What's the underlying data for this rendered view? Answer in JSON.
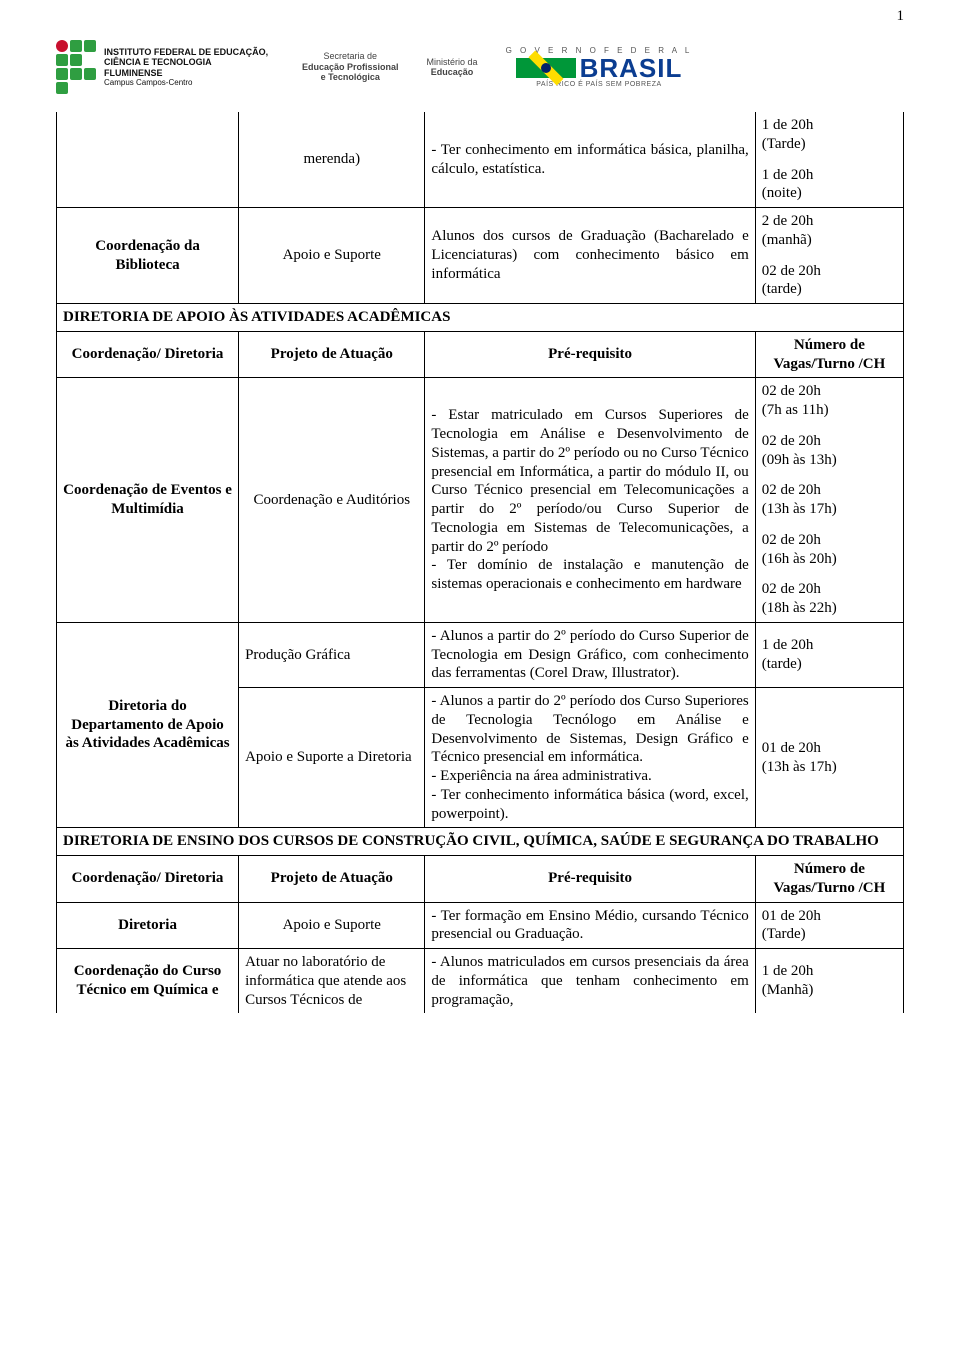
{
  "page_number": "1",
  "header": {
    "iff_text": "INSTITUTO FEDERAL DE EDUCAÇÃO, CIÊNCIA E TECNOLOGIA",
    "iff_sub": "FLUMINENSE",
    "iff_campus": "Campus Campos-Centro",
    "secretaria_l1": "Secretaria de",
    "secretaria_l2": "Educação Profissional",
    "secretaria_l3": "e Tecnológica",
    "ministerio_l1": "Ministério da",
    "ministerio_l2": "Educação",
    "governo": "G O V E R N O   F E D E R A L",
    "brasil": "BRASIL",
    "tag": "PAÍS RICO É PAÍS SEM POBREZA"
  },
  "rows_top": [
    {
      "col1": "",
      "col2": "merenda)",
      "col3": "- Ter conhecimento em informática básica, planilha, cálculo, estatística.",
      "vagas": [
        {
          "qty": "1 de 20h",
          "turno": "(Tarde)"
        },
        {
          "qty": "1 de 20h",
          "turno": "(noite)"
        }
      ]
    },
    {
      "col1": "Coordenação da Biblioteca",
      "col2": "Apoio e Suporte",
      "col3": "Alunos dos cursos de Graduação (Bacharelado e Licenciaturas) com conhecimento básico em informática",
      "vagas": [
        {
          "qty": "2 de 20h",
          "turno": "(manhã)"
        },
        {
          "qty": "02 de 20h",
          "turno": "(tarde)"
        }
      ]
    }
  ],
  "section1": {
    "title": "DIRETORIA DE APOIO ÀS ATIVIDADES ACADÊMICAS",
    "headers": {
      "h1": "Coordenação/ Diretoria",
      "h2": "Projeto de Atuação",
      "h3": "Pré-requisito",
      "h4_l1": "Número de",
      "h4_l2": "Vagas/Turno /CH"
    },
    "row_eventos": {
      "col1": "Coordenação de Eventos e Multimídia",
      "col2": "Coordenação e Auditórios",
      "col3": "- Estar matriculado em Cursos Superiores de Tecnologia em Análise e Desenvolvimento de Sistemas, a partir do 2º período ou no Curso Técnico presencial em Informática, a partir do módulo II, ou Curso Técnico presencial em Telecomunicações a partir do 2º período/ou Curso Superior de Tecnologia em Sistemas de Telecomunicações, a partir do 2º período\n- Ter domínio de instalação e manutenção de sistemas operacionais e conhecimento em hardware",
      "vagas": [
        {
          "qty": "02 de 20h",
          "turno": "(7h as 11h)"
        },
        {
          "qty": "02 de 20h",
          "turno": "(09h às 13h)"
        },
        {
          "qty": "02 de 20h",
          "turno": "(13h às 17h)"
        },
        {
          "qty": "02 de 20h",
          "turno": "(16h às 20h)"
        },
        {
          "qty": "02 de 20h",
          "turno": "(18h às 22h)"
        }
      ]
    },
    "row_dir_dep": {
      "col1": "Diretoria do Departamento de Apoio às Atividades Acadêmicas",
      "sub1": {
        "col2": "Produção Gráfica",
        "col3": "- Alunos a partir do 2º período do Curso Superior de Tecnologia em Design Gráfico, com conhecimento das ferramentas (Corel Draw, Illustrator).",
        "vagas": [
          {
            "qty": "1 de 20h",
            "turno": "(tarde)"
          }
        ]
      },
      "sub2": {
        "col2": "Apoio e Suporte a Diretoria",
        "col3": "- Alunos a partir do 2º período dos Curso Superiores de Tecnologia Tecnólogo em Análise e Desenvolvimento de Sistemas, Design Gráfico e Técnico presencial em informática.\n- Experiência na área administrativa.\n- Ter conhecimento informática básica (word, excel, powerpoint).",
        "vagas": [
          {
            "qty": "01 de 20h",
            "turno": "(13h às 17h)"
          }
        ]
      }
    }
  },
  "section2": {
    "title": "DIRETORIA DE ENSINO DOS CURSOS DE CONSTRUÇÃO CIVIL, QUÍMICA, SAÚDE E SEGURANÇA DO TRABALHO",
    "headers": {
      "h1": "Coordenação/ Diretoria",
      "h2": "Projeto de Atuação",
      "h3": "Pré-requisito",
      "h4_l1": "Número de",
      "h4_l2": "Vagas/Turno /CH"
    },
    "row_dir": {
      "col1": "Diretoria",
      "col2": "Apoio e Suporte",
      "col3": "- Ter formação em Ensino Médio, cursando Técnico presencial ou Graduação.",
      "vagas": [
        {
          "qty": "01 de 20h",
          "turno": "(Tarde)"
        }
      ]
    },
    "row_quimica": {
      "col1": "Coordenação do Curso Técnico em Química e",
      "col2": "Atuar no laboratório de informática que atende aos Cursos Técnicos de",
      "col3": "- Alunos matriculados em cursos presenciais da área de informática que tenham conhecimento em programação,",
      "vagas": [
        {
          "qty": "1 de 20h",
          "turno": "(Manhã)"
        }
      ]
    }
  }
}
